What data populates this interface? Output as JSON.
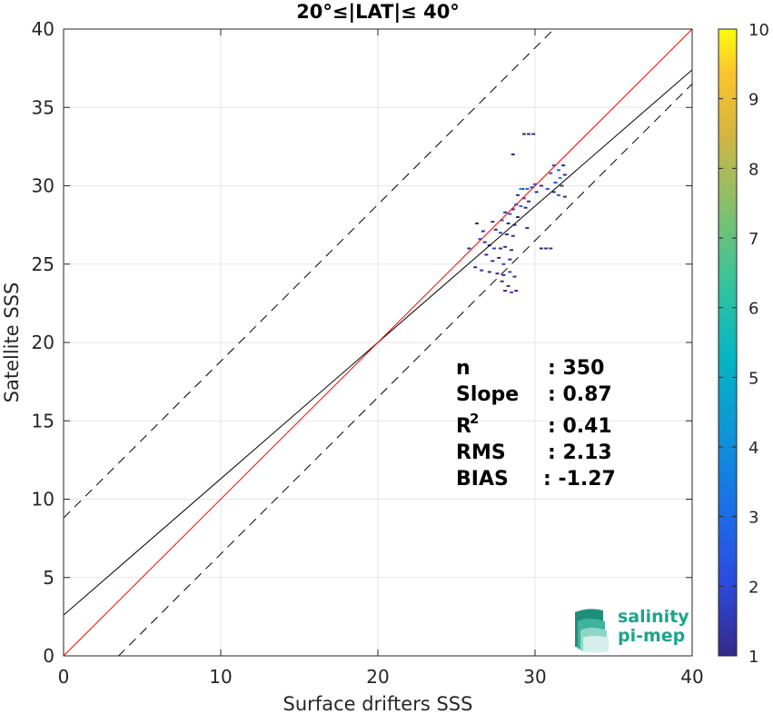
{
  "chart_data": {
    "type": "scatter",
    "title": "20°≤|LAT|≤ 40°",
    "xlabel": "Surface drifters SSS",
    "ylabel": "Satellite SSS",
    "xlim": [
      0,
      40
    ],
    "ylim": [
      0,
      40
    ],
    "xticks": [
      0,
      10,
      20,
      30,
      40
    ],
    "yticks": [
      0,
      5,
      10,
      15,
      20,
      25,
      30,
      35,
      40
    ],
    "grid": true,
    "reference_lines": {
      "identity": {
        "slope": 1,
        "intercept": 0,
        "color": "#ff0000"
      },
      "fit": {
        "slope": 0.87,
        "intercept": 2.6,
        "color": "#000000"
      },
      "upper_bound": {
        "slope": 1,
        "intercept": 8.8,
        "style": "dashed"
      },
      "lower_bound": {
        "slope": 1,
        "intercept": -3.5,
        "style": "dashed"
      }
    },
    "stats": [
      {
        "label": "n",
        "value": ": 350"
      },
      {
        "label": "Slope",
        "value": ": 0.87"
      },
      {
        "label": "R",
        "sup": "2",
        "value": ": 0.41"
      },
      {
        "label": "RMS",
        "value": ": 2.13"
      },
      {
        "label": "BIAS",
        "value": ": -1.27"
      }
    ],
    "colorbar": {
      "min": 1,
      "max": 10,
      "ticks": [
        1,
        2,
        3,
        4,
        5,
        6,
        7,
        8,
        9,
        10
      ],
      "colormap": "parula"
    },
    "points": [
      [
        29.3,
        33.3,
        1
      ],
      [
        29.6,
        33.3,
        1
      ],
      [
        29.9,
        33.3,
        1
      ],
      [
        28.6,
        32.0,
        1
      ],
      [
        31.2,
        31.3,
        2
      ],
      [
        31.5,
        31.0,
        3
      ],
      [
        31.8,
        31.3,
        1
      ],
      [
        31.0,
        30.8,
        2
      ],
      [
        31.6,
        30.5,
        4
      ],
      [
        31.9,
        30.7,
        1
      ],
      [
        31.3,
        30.2,
        2
      ],
      [
        31.7,
        30.0,
        1
      ],
      [
        30.4,
        30.0,
        1
      ],
      [
        30.8,
        29.8,
        2
      ],
      [
        31.2,
        29.6,
        1
      ],
      [
        31.5,
        29.4,
        2
      ],
      [
        31.9,
        29.3,
        1
      ],
      [
        29.2,
        29.8,
        1
      ],
      [
        29.5,
        29.8,
        3
      ],
      [
        29.8,
        29.9,
        2
      ],
      [
        30.1,
        29.6,
        1
      ],
      [
        28.9,
        29.4,
        1
      ],
      [
        29.3,
        29.2,
        2
      ],
      [
        29.6,
        29.0,
        1
      ],
      [
        28.8,
        28.8,
        2
      ],
      [
        29.1,
        28.7,
        3
      ],
      [
        29.4,
        28.6,
        1
      ],
      [
        28.6,
        28.5,
        1
      ],
      [
        28.4,
        28.2,
        2
      ],
      [
        28.9,
        28.0,
        1
      ],
      [
        28.1,
        28.3,
        1
      ],
      [
        27.9,
        27.8,
        2
      ],
      [
        28.3,
        27.6,
        1
      ],
      [
        28.7,
        27.5,
        1
      ],
      [
        29.5,
        27.3,
        1
      ],
      [
        27.5,
        27.2,
        1
      ],
      [
        27.8,
        27.0,
        2
      ],
      [
        28.2,
        26.9,
        1
      ],
      [
        28.6,
        26.8,
        1
      ],
      [
        26.3,
        27.6,
        1
      ],
      [
        26.5,
        26.6,
        2
      ],
      [
        26.8,
        26.4,
        1
      ],
      [
        27.1,
        26.2,
        1
      ],
      [
        27.4,
        26.0,
        2
      ],
      [
        27.8,
        26.0,
        1
      ],
      [
        28.1,
        26.1,
        1
      ],
      [
        28.5,
        25.9,
        1
      ],
      [
        25.8,
        26.0,
        1
      ],
      [
        30.4,
        26.0,
        1
      ],
      [
        30.7,
        26.0,
        1
      ],
      [
        31.0,
        26.0,
        1
      ],
      [
        26.9,
        25.6,
        1
      ],
      [
        27.3,
        25.2,
        1
      ],
      [
        27.7,
        25.4,
        1
      ],
      [
        28.0,
        25.0,
        2
      ],
      [
        28.4,
        25.3,
        1
      ],
      [
        26.2,
        24.8,
        1
      ],
      [
        26.6,
        24.6,
        1
      ],
      [
        27.1,
        24.5,
        1
      ],
      [
        27.6,
        24.4,
        1
      ],
      [
        28.0,
        24.3,
        1
      ],
      [
        28.4,
        24.5,
        2
      ],
      [
        28.7,
        24.2,
        1
      ],
      [
        27.9,
        23.9,
        1
      ],
      [
        28.3,
        23.6,
        1
      ],
      [
        28.1,
        23.3,
        1
      ],
      [
        28.5,
        23.2,
        2
      ],
      [
        28.8,
        23.3,
        1
      ],
      [
        26.7,
        27.1,
        1
      ],
      [
        27.3,
        27.7,
        1
      ],
      [
        29.1,
        29.8,
        4
      ],
      [
        30.0,
        30.1,
        2
      ]
    ]
  }
}
